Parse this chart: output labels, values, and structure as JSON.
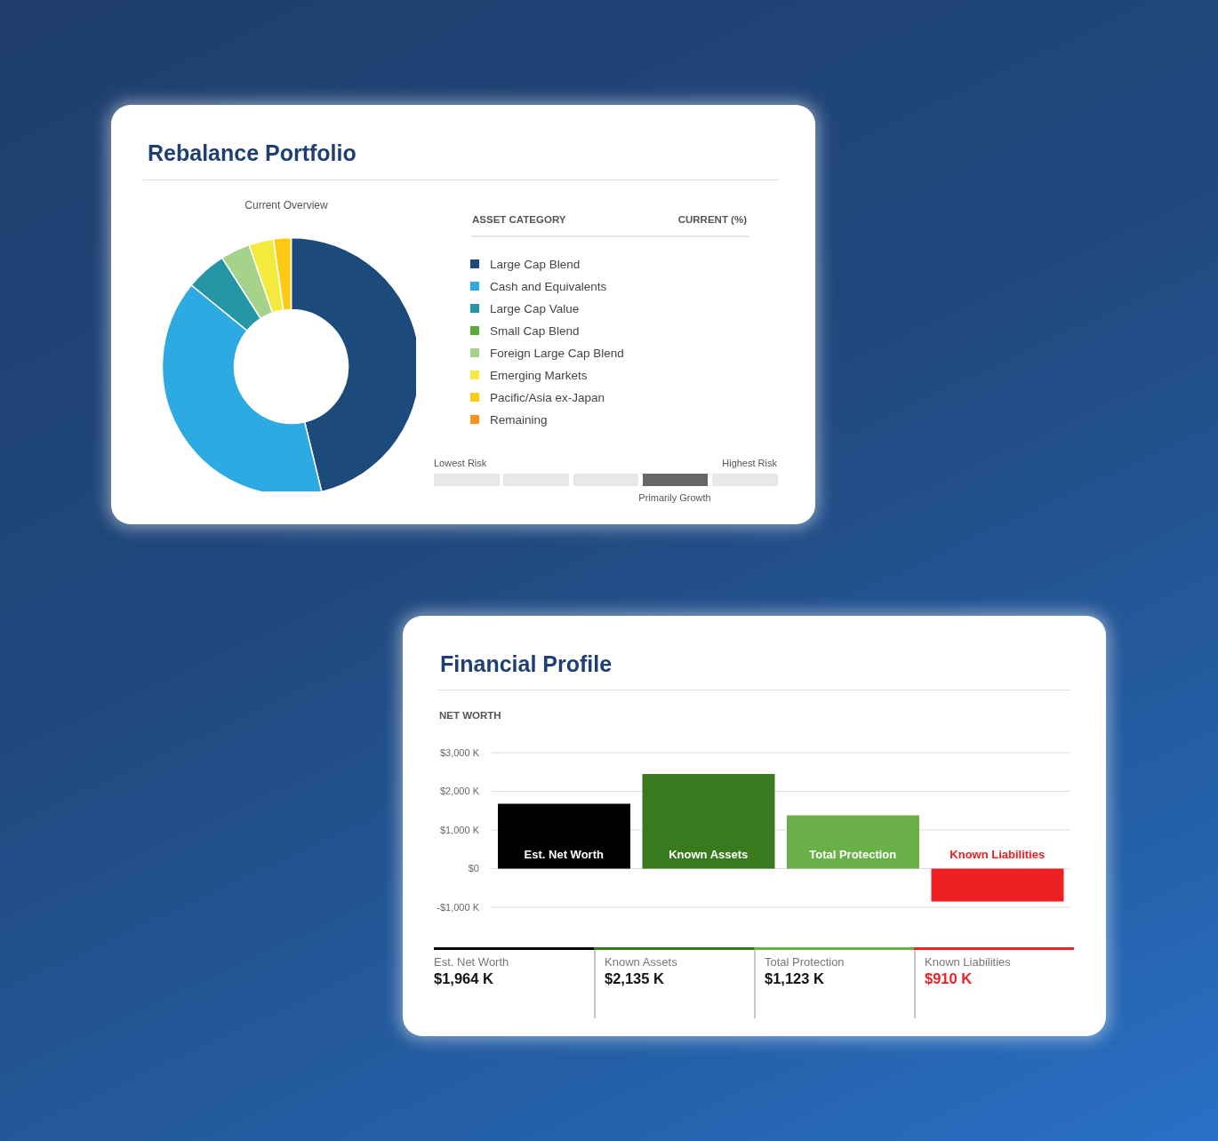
{
  "chart_data": [
    {
      "type": "donut",
      "title": "Rebalance Portfolio",
      "subtitle": "Current Overview",
      "categories": [
        "Large Cap Blend",
        "Cash and Equivalents",
        "Large Cap Value",
        "Small Cap Blend",
        "Foreign Large Cap Blend",
        "Emerging Markets",
        "Pacific/Asia ex-Japan",
        "Remaining"
      ],
      "values": [
        46.2,
        39.7,
        5.1,
        0,
        3.7,
        3.1,
        2.2,
        0
      ],
      "colors": [
        "#1b4a7b",
        "#2eaae2",
        "#2695a5",
        "#5aab3e",
        "#a5d38b",
        "#f4ea3d",
        "#fecb12",
        "#f7941d"
      ],
      "legend": "right",
      "legend_title": "ASSET CATEGORY",
      "annotations": [
        "CURRENT (%)",
        "Lowest Risk",
        "Highest Risk",
        "Primarily Growth"
      ]
    },
    {
      "type": "bar",
      "title": "Financial Profile",
      "subtitle": "NET WORTH",
      "categories": [
        "Est. Net Worth",
        "Known Assets",
        "Total Protection",
        "Known Liabilities"
      ],
      "values": [
        1680,
        2450,
        1380,
        -850
      ],
      "colors": [
        "#000000",
        "#3a7a1e",
        "#68b047",
        "#ed2024"
      ],
      "ylim": [
        -1000,
        3000
      ],
      "yticks": [
        {
          "value": -1000,
          "label": "-$1,000 K"
        },
        {
          "value": 0,
          "label": "$0"
        },
        {
          "value": 1000,
          "label": "$1,000 K"
        },
        {
          "value": 2000,
          "label": "$2,000 K"
        },
        {
          "value": 3000,
          "label": "$3,000 K"
        }
      ],
      "grid": "y",
      "annotations": [
        "$1,964 K",
        "$2,135 K",
        "$1,123 K",
        "$910 K"
      ]
    }
  ]
}
